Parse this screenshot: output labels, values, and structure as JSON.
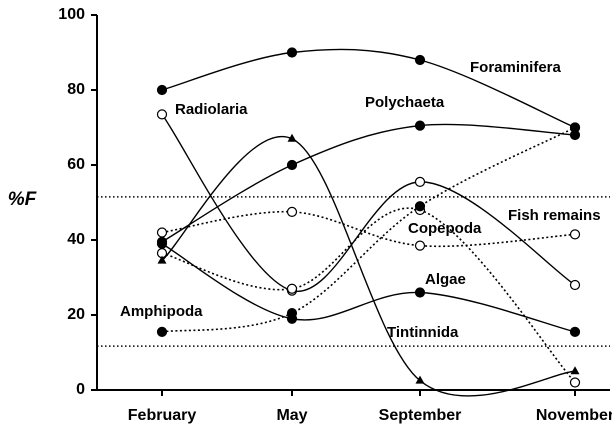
{
  "chart_data": {
    "type": "line",
    "y_label": "%F",
    "categories": [
      "February",
      "May",
      "September",
      "November"
    ],
    "ylim": [
      0,
      100
    ],
    "yticks": [
      0,
      20,
      40,
      60,
      80,
      100
    ],
    "reference_lines": [
      51.5,
      11.7
    ],
    "series": [
      {
        "name": "Foraminifera",
        "color": "#000000",
        "marker": "filled-circle",
        "line": "solid",
        "values": [
          80,
          90,
          88,
          70
        ]
      },
      {
        "name": "Radiolaria",
        "color": "#000000",
        "marker": "open-circle",
        "line": "solid",
        "values": [
          73.5,
          26.5,
          55.5,
          28
        ]
      },
      {
        "name": "Polychaeta",
        "color": "#000000",
        "marker": "filled-circle",
        "line": "solid",
        "values": [
          39.5,
          60,
          70.5,
          68
        ]
      },
      {
        "name": "Copepoda",
        "color": "#000000",
        "marker": "open-circle",
        "line": "dotted",
        "values": [
          36.5,
          27,
          48,
          2
        ]
      },
      {
        "name": "Fish remains",
        "color": "#000000",
        "marker": "open-circle",
        "line": "dotted",
        "values": [
          42,
          47.5,
          38.5,
          41.5
        ]
      },
      {
        "name": "Algae",
        "color": "#000000",
        "marker": "filled-circle",
        "line": "solid",
        "values": [
          39,
          19,
          26,
          15.5
        ]
      },
      {
        "name": "Amphipoda",
        "color": "#000000",
        "marker": "filled-circle",
        "line": "dotted",
        "values": [
          15.5,
          20.5,
          49,
          70
        ]
      },
      {
        "name": "Tintinnida",
        "color": "#000000",
        "marker": "triangle",
        "line": "solid",
        "values": [
          34.5,
          67,
          2.5,
          5
        ]
      }
    ]
  }
}
